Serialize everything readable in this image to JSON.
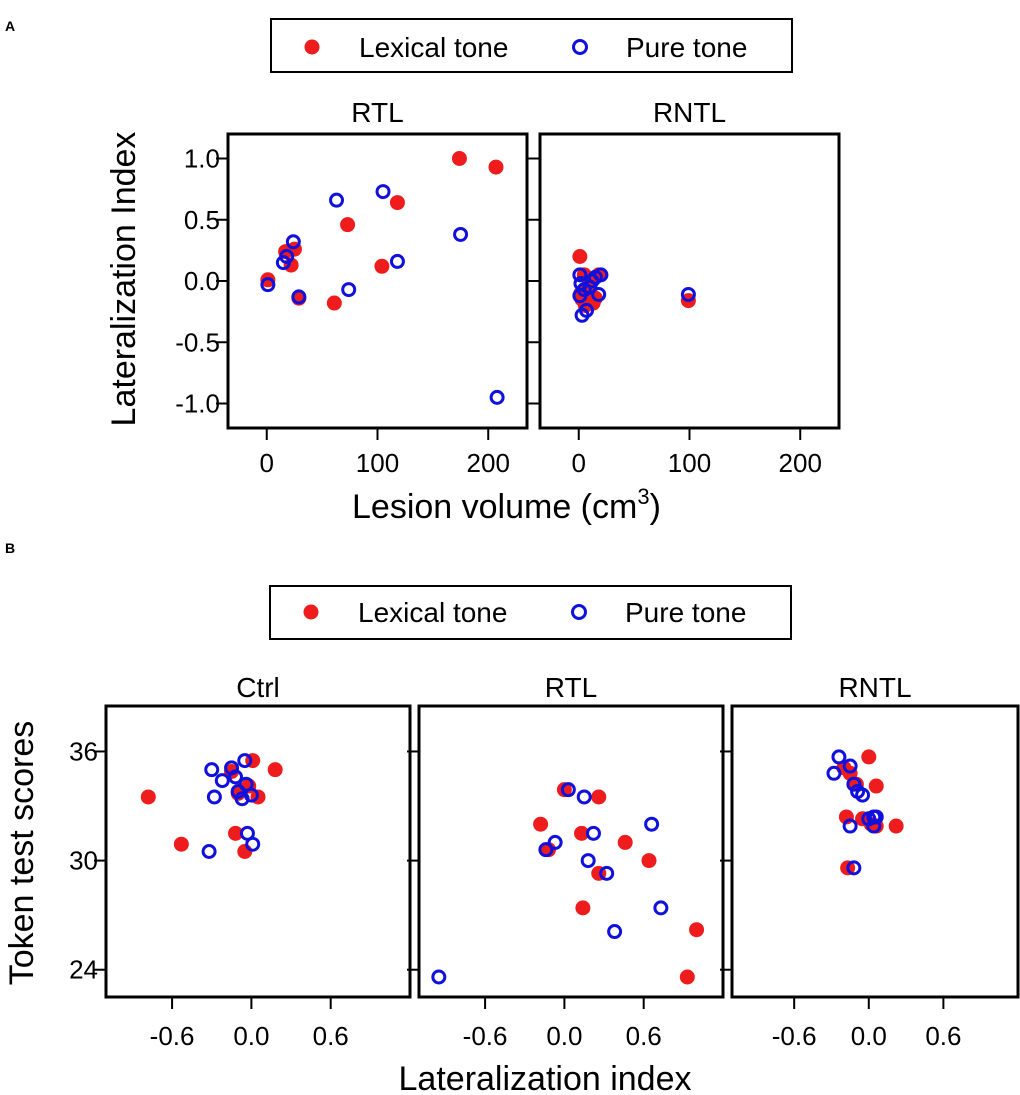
{
  "colors": {
    "lexical": "#ee1c1c",
    "pure": "#1111dd"
  },
  "panel_letters": [
    "A",
    "B"
  ],
  "legend": {
    "lexical": "Lexical tone",
    "pure": "Pure tone"
  },
  "chart_data": [
    {
      "id": "A",
      "type": "scatter",
      "xlabel": "Lesion volume (cm",
      "xlabel_sup": "3",
      "xlabel_end": ")",
      "ylabel": "Lateralization Index",
      "xlim": [
        -35,
        235
      ],
      "ylim": [
        -1.2,
        1.2
      ],
      "xticks": [
        0,
        100,
        200
      ],
      "yticks": [
        1.0,
        0.5,
        0.0,
        -0.5,
        -1.0
      ],
      "xtick_labels": [
        "0",
        "100",
        "200"
      ],
      "ytick_labels": [
        "1.0",
        "0.5",
        "0.0",
        "-0.5",
        "-1.0"
      ],
      "panels": [
        {
          "title": "RTL",
          "series": [
            {
              "name": "Lexical tone",
              "points": [
                [
                  1,
                  0.01
                ],
                [
                  17,
                  0.24
                ],
                [
                  22,
                  0.13
                ],
                [
                  25,
                  0.26
                ],
                [
                  29,
                  -0.14
                ],
                [
                  61,
                  -0.18
                ],
                [
                  73,
                  0.46
                ],
                [
                  104,
                  0.12
                ],
                [
                  118,
                  0.64
                ],
                [
                  174,
                  1.0
                ],
                [
                  207,
                  0.93
                ]
              ]
            },
            {
              "name": "Pure tone",
              "points": [
                [
                  1,
                  -0.03
                ],
                [
                  15,
                  0.15
                ],
                [
                  18,
                  0.2
                ],
                [
                  24,
                  0.32
                ],
                [
                  29,
                  -0.13
                ],
                [
                  63,
                  0.66
                ],
                [
                  74,
                  -0.07
                ],
                [
                  105,
                  0.73
                ],
                [
                  118,
                  0.16
                ],
                [
                  175,
                  0.38
                ],
                [
                  208,
                  -0.95
                ]
              ]
            }
          ]
        },
        {
          "title": "RNTL",
          "series": [
            {
              "name": "Lexical tone",
              "points": [
                [
                  1,
                  0.2
                ],
                [
                  2,
                  -0.1
                ],
                [
                  3,
                  -0.15
                ],
                [
                  5,
                  0.05
                ],
                [
                  6,
                  -0.2
                ],
                [
                  8,
                  -0.05
                ],
                [
                  10,
                  0.0
                ],
                [
                  13,
                  -0.18
                ],
                [
                  15,
                  -0.14
                ],
                [
                  18,
                  0.05
                ],
                [
                  99,
                  -0.16
                ]
              ]
            },
            {
              "name": "Pure tone",
              "points": [
                [
                  1,
                  0.05
                ],
                [
                  2,
                  -0.02
                ],
                [
                  1,
                  -0.12
                ],
                [
                  3,
                  -0.28
                ],
                [
                  5,
                  -0.07
                ],
                [
                  7,
                  -0.24
                ],
                [
                  10,
                  -0.05
                ],
                [
                  12,
                  0.0
                ],
                [
                  15,
                  0.03
                ],
                [
                  18,
                  -0.11
                ],
                [
                  20,
                  0.05
                ],
                [
                  99,
                  -0.11
                ]
              ]
            }
          ]
        }
      ]
    },
    {
      "id": "B",
      "type": "scatter",
      "xlabel": "Lateralization index",
      "ylabel": "Token test scores",
      "xlim": [
        -1.1,
        1.2
      ],
      "ylim": [
        22.5,
        38.5
      ],
      "xticks": [
        -0.6,
        0.0,
        0.6
      ],
      "yticks": [
        36,
        30,
        24
      ],
      "xtick_labels": [
        "-0.6",
        "0.0",
        "0.6"
      ],
      "ytick_labels": [
        "36",
        "30",
        "24"
      ],
      "panels": [
        {
          "title": "Ctrl",
          "series": [
            {
              "name": "Lexical tone",
              "points": [
                [
                  -0.78,
                  33.5
                ],
                [
                  -0.53,
                  30.9
                ],
                [
                  -0.12,
                  31.5
                ],
                [
                  -0.05,
                  30.5
                ],
                [
                  -0.1,
                  33.7
                ],
                [
                  -0.02,
                  34.1
                ],
                [
                  0.01,
                  35.5
                ],
                [
                  0.05,
                  33.5
                ],
                [
                  0.18,
                  35.0
                ],
                [
                  -0.15,
                  34.9
                ]
              ]
            },
            {
              "name": "Pure tone",
              "points": [
                [
                  -0.32,
                  30.5
                ],
                [
                  -0.3,
                  35.0
                ],
                [
                  -0.28,
                  33.5
                ],
                [
                  -0.22,
                  34.4
                ],
                [
                  -0.15,
                  35.1
                ],
                [
                  -0.12,
                  34.6
                ],
                [
                  -0.1,
                  33.8
                ],
                [
                  -0.07,
                  33.4
                ],
                [
                  -0.05,
                  35.5
                ],
                [
                  -0.04,
                  34.2
                ],
                [
                  0.0,
                  33.6
                ],
                [
                  -0.03,
                  31.5
                ],
                [
                  0.01,
                  30.9
                ]
              ]
            }
          ]
        },
        {
          "title": "RTL",
          "series": [
            {
              "name": "Lexical tone",
              "points": [
                [
                  -0.18,
                  32.0
                ],
                [
                  -0.12,
                  30.6
                ],
                [
                  0.0,
                  33.9
                ],
                [
                  0.13,
                  31.5
                ],
                [
                  0.14,
                  27.4
                ],
                [
                  0.26,
                  33.5
                ],
                [
                  0.26,
                  29.3
                ],
                [
                  0.46,
                  31.0
                ],
                [
                  0.64,
                  30.0
                ],
                [
                  0.93,
                  23.6
                ],
                [
                  1.0,
                  26.2
                ]
              ]
            },
            {
              "name": "Pure tone",
              "points": [
                [
                  -0.95,
                  23.6
                ],
                [
                  -0.14,
                  30.6
                ],
                [
                  -0.07,
                  31.0
                ],
                [
                  0.03,
                  33.9
                ],
                [
                  0.15,
                  33.5
                ],
                [
                  0.18,
                  30.0
                ],
                [
                  0.22,
                  31.5
                ],
                [
                  0.32,
                  29.3
                ],
                [
                  0.38,
                  26.1
                ],
                [
                  0.66,
                  32.0
                ],
                [
                  0.73,
                  27.4
                ]
              ]
            }
          ]
        },
        {
          "title": "RNTL",
          "series": [
            {
              "name": "Lexical tone",
              "points": [
                [
                  -0.2,
                  35.1
                ],
                [
                  -0.15,
                  34.8
                ],
                [
                  -0.18,
                  32.4
                ],
                [
                  -0.17,
                  29.6
                ],
                [
                  -0.1,
                  34.2
                ],
                [
                  -0.05,
                  32.3
                ],
                [
                  0.0,
                  35.7
                ],
                [
                  0.06,
                  34.1
                ],
                [
                  0.02,
                  32.0
                ],
                [
                  0.06,
                  31.9
                ],
                [
                  0.22,
                  31.9
                ]
              ]
            },
            {
              "name": "Pure tone",
              "points": [
                [
                  -0.28,
                  34.8
                ],
                [
                  -0.24,
                  35.7
                ],
                [
                  -0.15,
                  35.2
                ],
                [
                  -0.12,
                  34.2
                ],
                [
                  -0.09,
                  33.8
                ],
                [
                  -0.15,
                  31.9
                ],
                [
                  -0.12,
                  29.6
                ],
                [
                  -0.05,
                  33.6
                ],
                [
                  0.0,
                  32.3
                ],
                [
                  0.04,
                  32.4
                ],
                [
                  0.04,
                  31.9
                ],
                [
                  0.06,
                  32.4
                ]
              ]
            }
          ]
        }
      ]
    }
  ]
}
